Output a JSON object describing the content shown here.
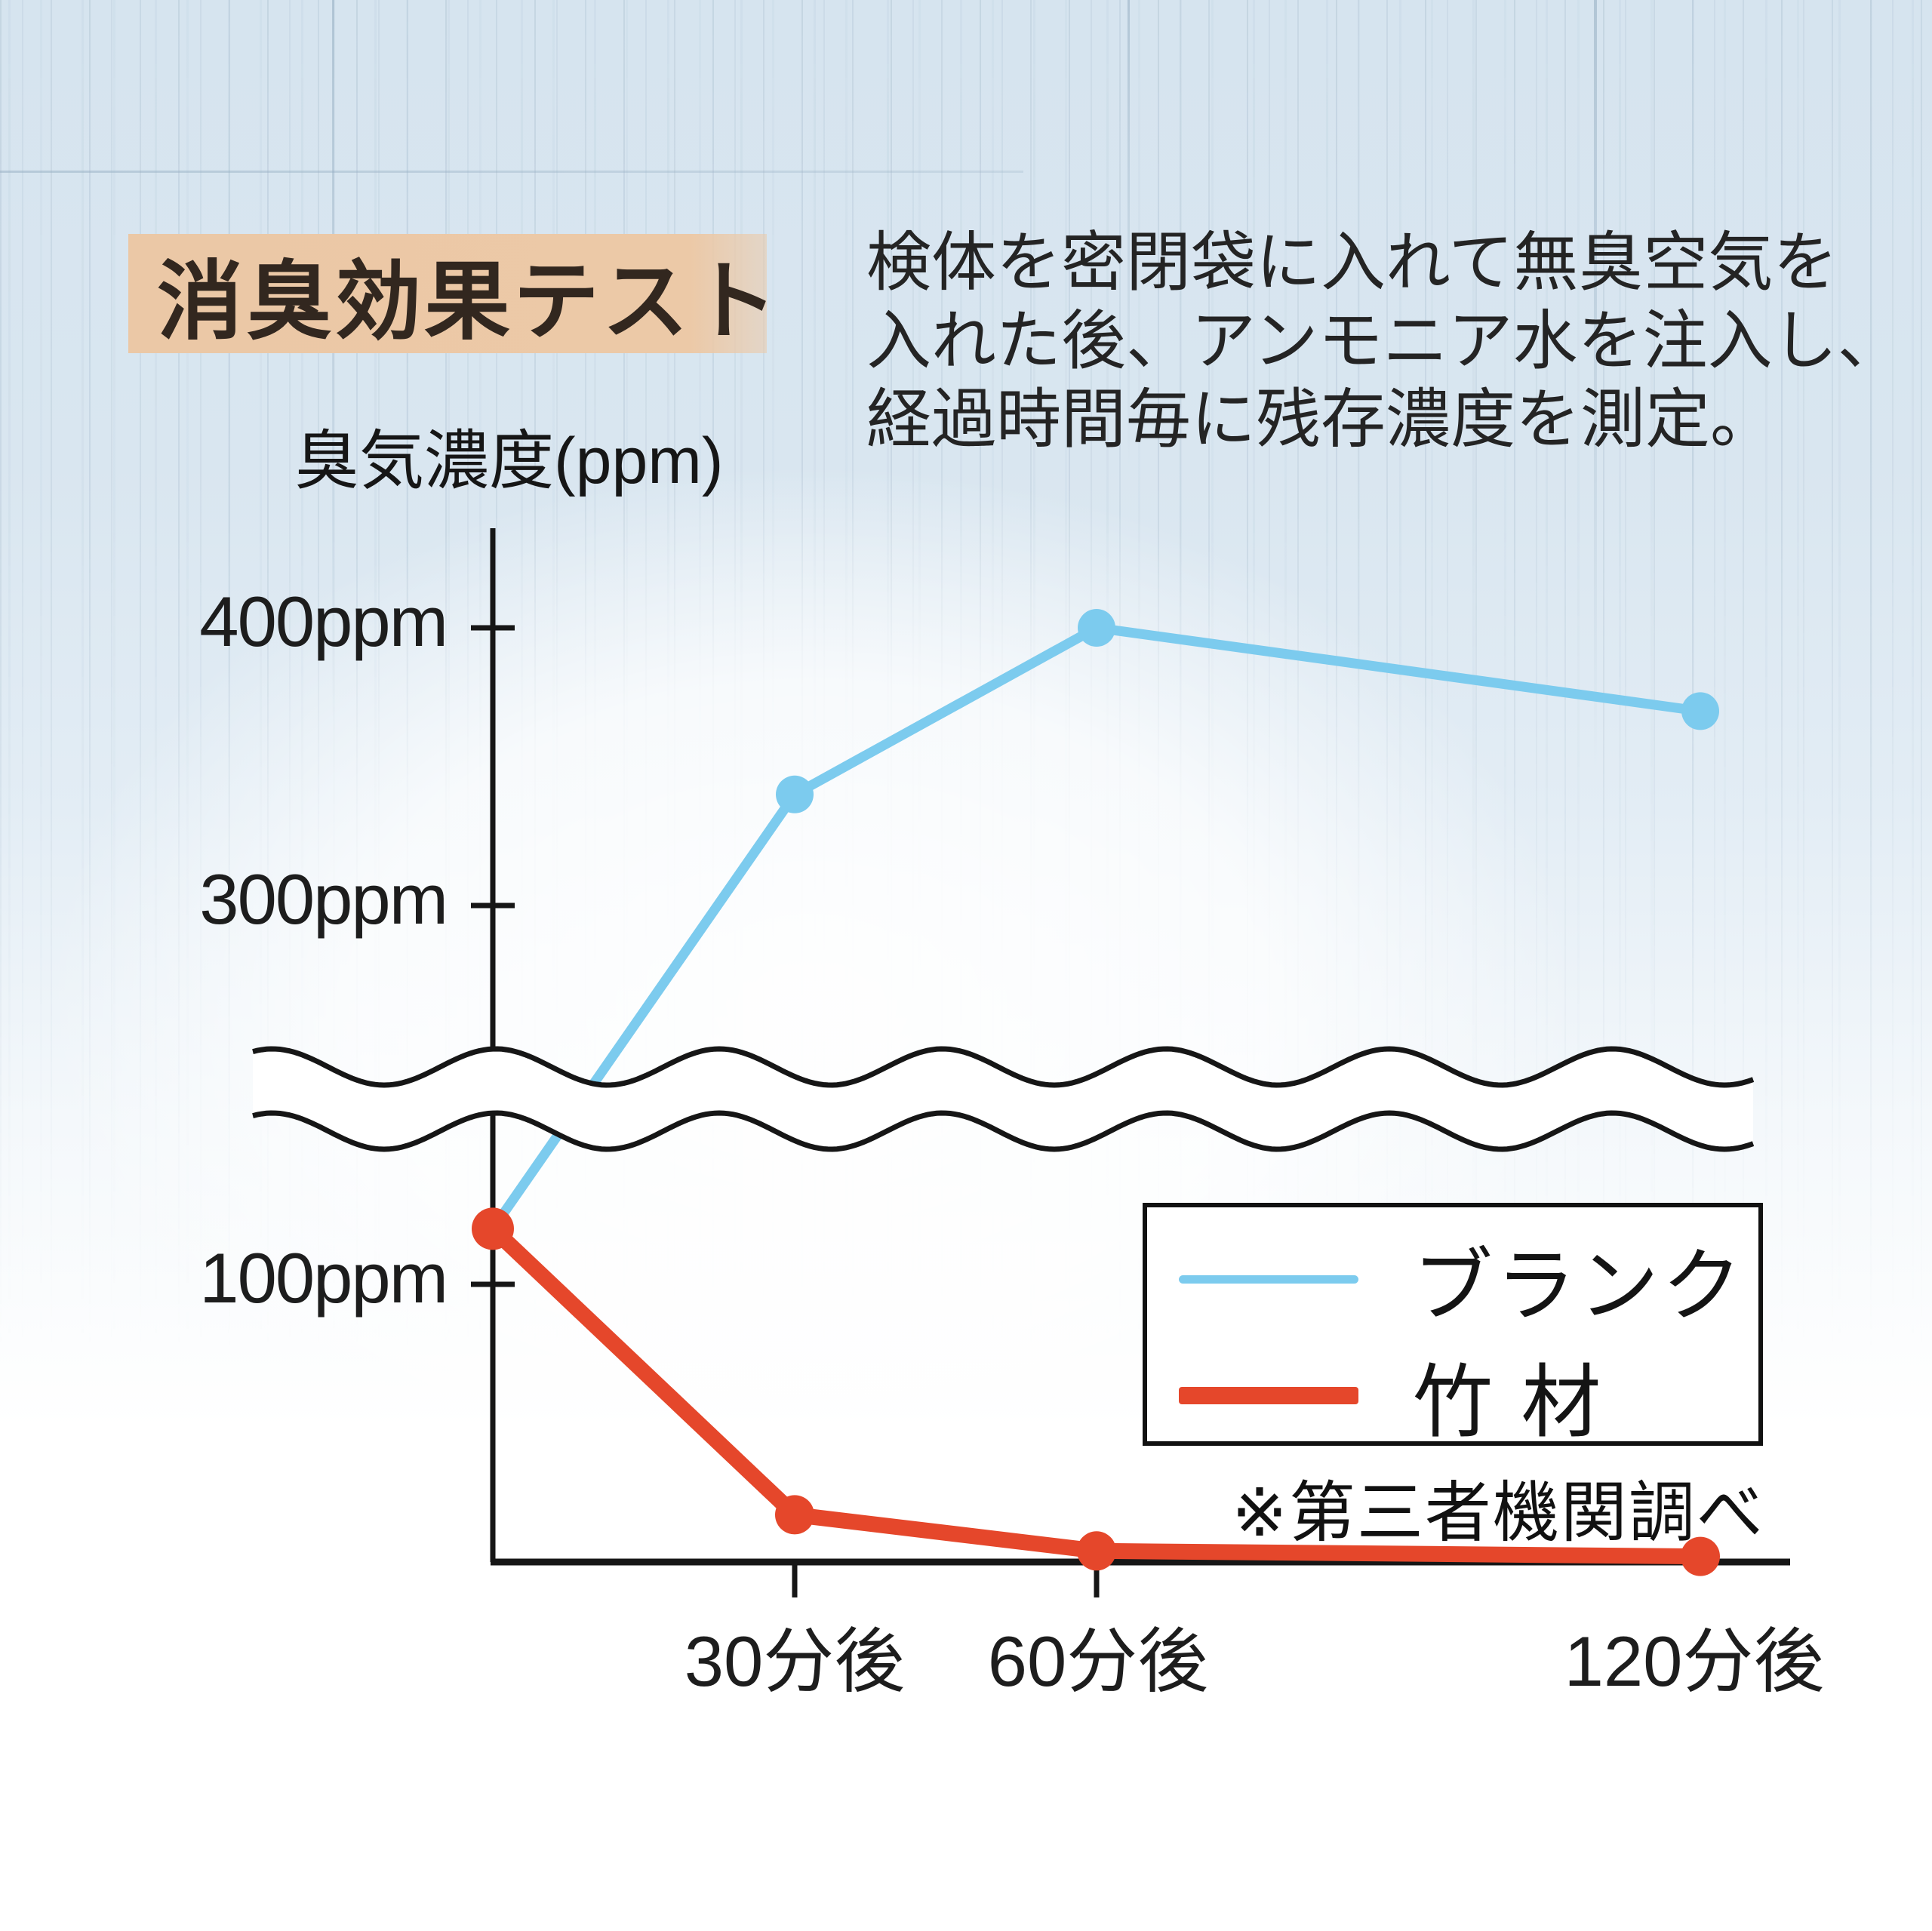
{
  "title": {
    "text": "消臭効果テスト"
  },
  "description": {
    "lines": [
      "検体を密閉袋に入れて無臭空気を",
      "入れた後、アンモニア水を注入し、",
      "経過時間毎に残存濃度を測定。"
    ]
  },
  "chart_data": {
    "type": "line",
    "title": "消臭効果テスト",
    "ylabel": "臭気濃度(ppm)",
    "x": [
      0,
      30,
      60,
      120
    ],
    "x_unit": "分",
    "x_tick_labels": [
      "30分後",
      "60分後",
      "120分後"
    ],
    "x_ticks_shown_minutes": [
      30,
      60
    ],
    "y_tick_labels": [
      "400ppm",
      "300ppm",
      "100ppm"
    ],
    "y_tick_values": [
      400,
      300,
      100
    ],
    "y_axis_break": {
      "between_values": [
        100,
        300
      ],
      "style": "double-wavy-line"
    },
    "grid": false,
    "legend_position": "middle-right",
    "footnote": "※第三者機関調べ",
    "series": [
      {
        "name": "ブランク",
        "color": "#7ccbee",
        "line_width": 13,
        "marker": "circle",
        "values": [
          120,
          340,
          400,
          370
        ]
      },
      {
        "name": "竹材",
        "color": "#e5472b",
        "line_width": 21,
        "marker": "circle",
        "values": [
          120,
          17,
          4,
          2
        ]
      }
    ]
  },
  "legend": {
    "items": [
      {
        "label": "ブランク",
        "color": "#7ccbee"
      },
      {
        "label": "竹 材",
        "color": "#e5472b"
      }
    ],
    "footnote": "※第三者機関調べ"
  },
  "colors": {
    "background_top": "#d8e5ef",
    "background_bottom": "#ffffff",
    "title_badge": "#ecc9a7",
    "title_text": "#32271f",
    "axis": "#161616",
    "blank_series": "#7ccbee",
    "bamboo_series": "#e5472b"
  }
}
